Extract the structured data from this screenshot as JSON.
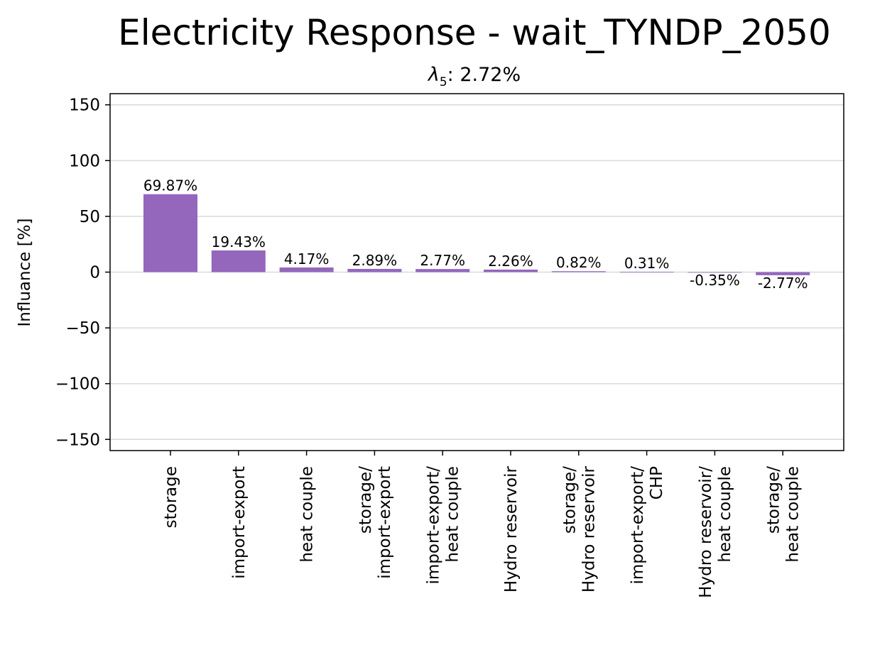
{
  "chart_data": {
    "type": "bar",
    "title": "Electricity Response - wait_TYNDP_2050",
    "subtitle": "λ5: 2.72%",
    "ylabel": "Influance [%]",
    "xlabel": "",
    "ylim": [
      -160,
      160
    ],
    "yticks": [
      150,
      100,
      50,
      0,
      -50,
      -100,
      -150
    ],
    "ytick_labels": [
      "150",
      "100",
      "50",
      "0",
      "−50",
      "−100",
      "−150"
    ],
    "grid": "horizontal",
    "bar_color": "#9467bd",
    "categories": [
      "storage",
      "import-export",
      "heat couple",
      "storage/\nimport-export",
      "import-export/\nheat couple",
      "Hydro reservoir",
      "storage/\nHydro reservoir",
      "import-export/\nCHP",
      "Hydro reservoir/\nheat couple",
      "storage/\nheat couple"
    ],
    "values": [
      69.87,
      19.43,
      4.17,
      2.89,
      2.77,
      2.26,
      0.82,
      0.31,
      -0.35,
      -2.77
    ],
    "value_labels": [
      "69.87%",
      "19.43%",
      "4.17%",
      "2.89%",
      "2.77%",
      "2.26%",
      "0.82%",
      "0.31%",
      "-0.35%",
      "-2.77%"
    ]
  }
}
